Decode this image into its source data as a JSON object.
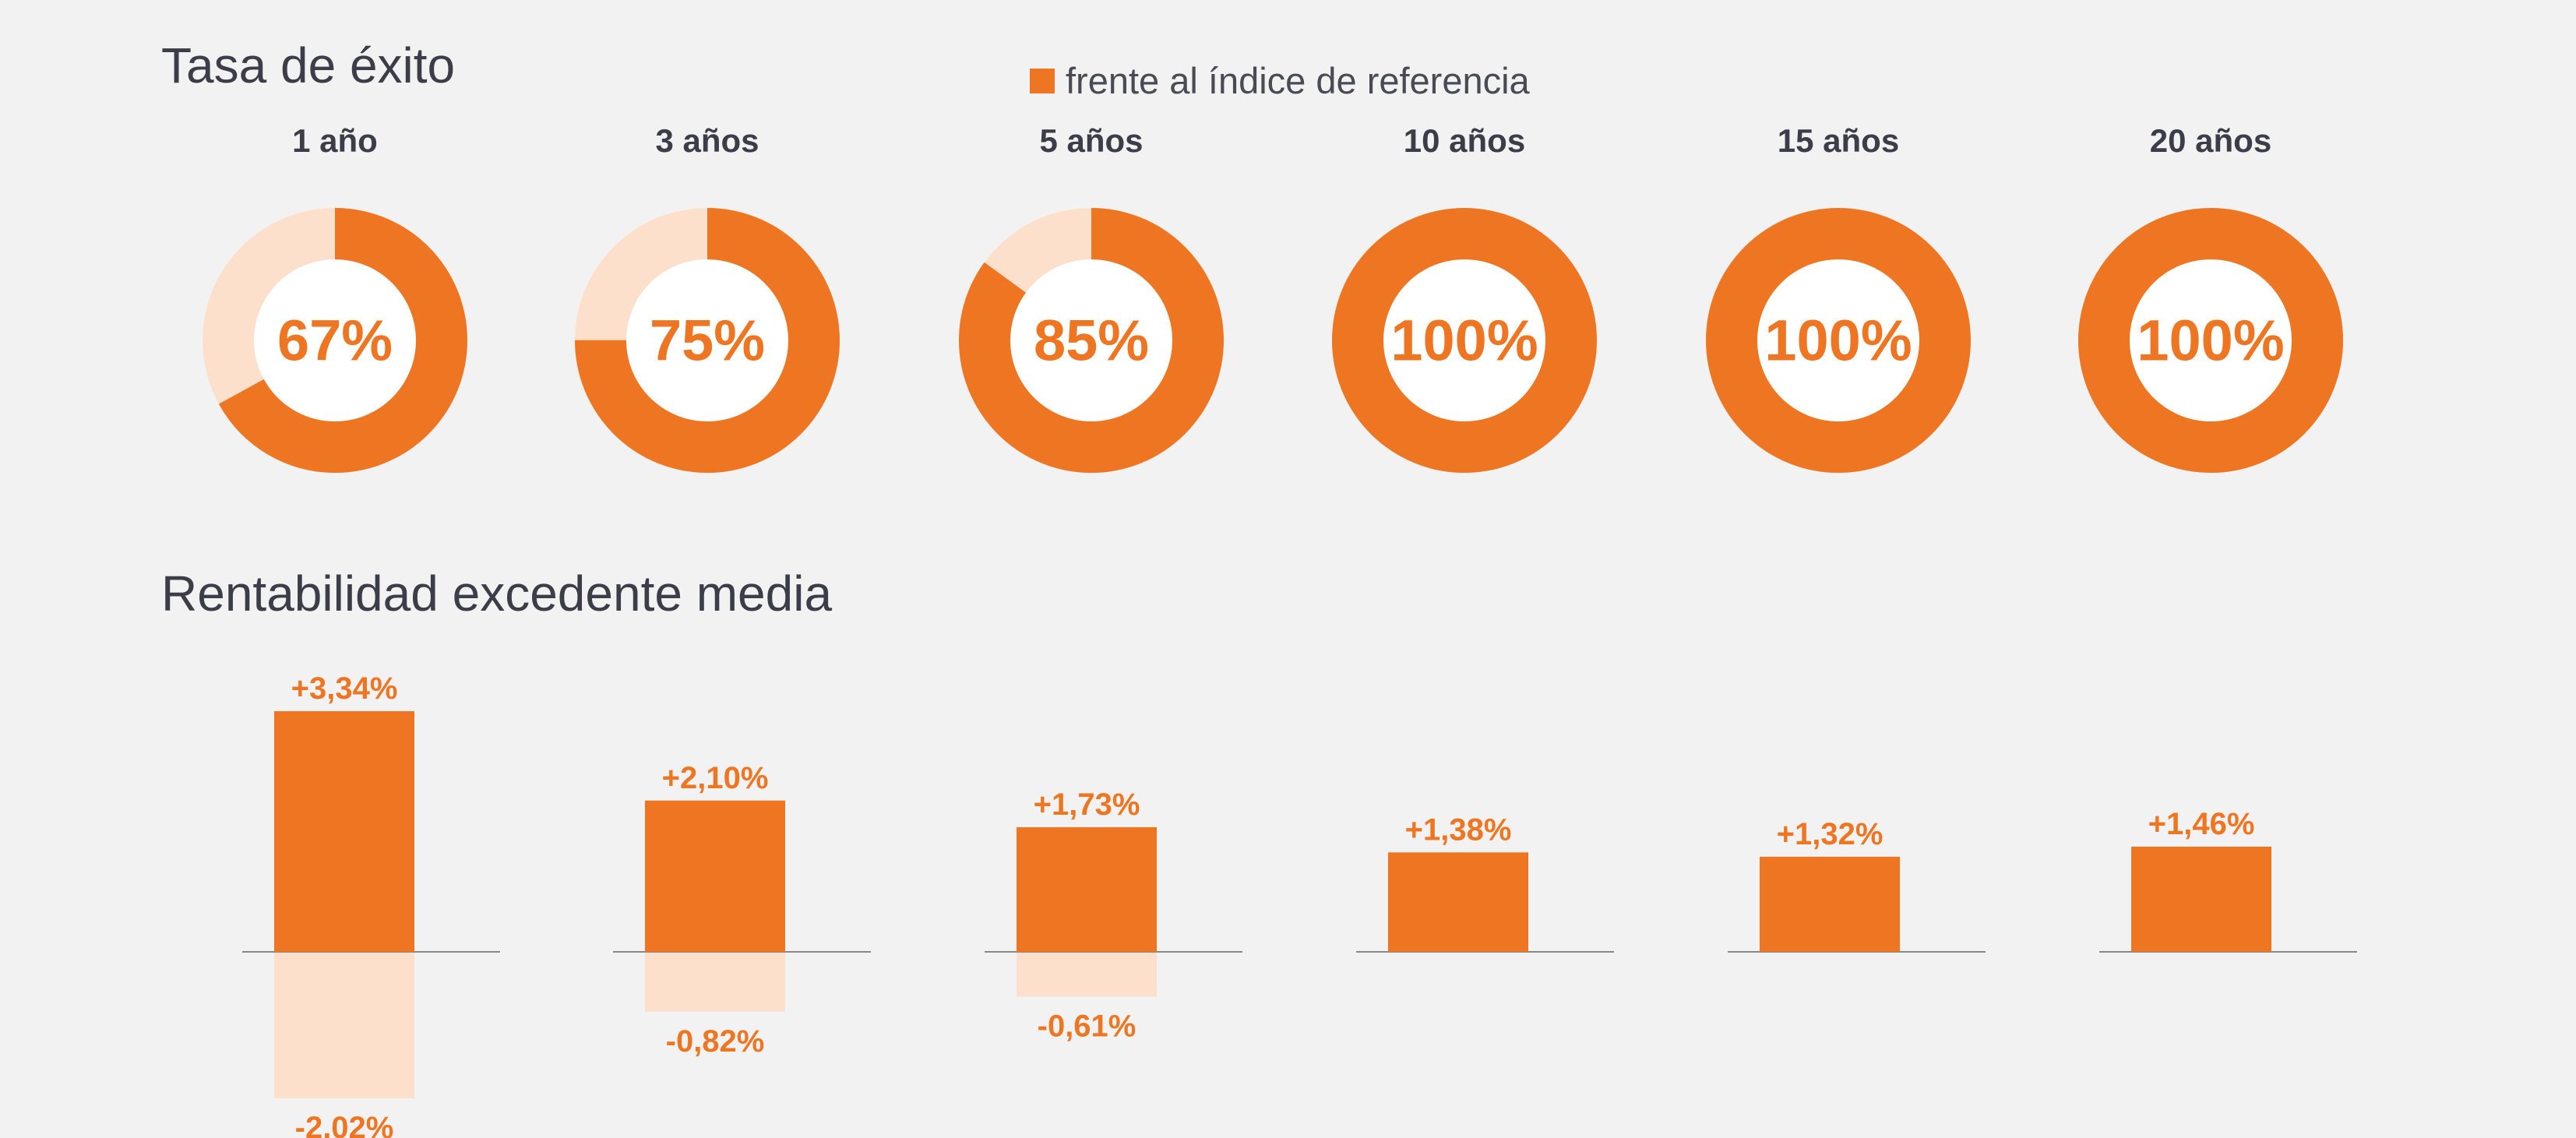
{
  "colors": {
    "accent": "#ee7623",
    "accent_light": "#fde0cc",
    "baseline": "#888888"
  },
  "legend": {
    "label": "frente al índice de referencia"
  },
  "chart_data": [
    {
      "type": "pie",
      "title": "Tasa de éxito",
      "categories": [
        "1 año",
        "3 años",
        "5 años",
        "10 años",
        "15 años",
        "20 años"
      ],
      "values": [
        67,
        75,
        85,
        100,
        100,
        100
      ],
      "value_labels": [
        "67%",
        "75%",
        "85%",
        "100%",
        "100%",
        "100%"
      ],
      "series": [
        {
          "name": "frente al índice de referencia",
          "values": [
            67,
            75,
            85,
            100,
            100,
            100
          ]
        }
      ],
      "legend": "top"
    },
    {
      "type": "bar",
      "title": "Rentabilidad excedente media",
      "categories": [
        "1 año",
        "3 años",
        "5 años",
        "10 años",
        "15 años",
        "20 años"
      ],
      "series": [
        {
          "values": [
            3.34,
            2.1,
            1.73,
            1.38,
            1.32,
            1.46
          ],
          "labels": [
            "+3,34%",
            "+2,10%",
            "+1,73%",
            "+1,38%",
            "+1,32%",
            "+1,46%"
          ]
        },
        {
          "values": [
            -2.02,
            -0.82,
            -0.61,
            null,
            null,
            null
          ],
          "labels": [
            "-2,02%",
            "-0,82%",
            "-0,61%",
            "",
            "",
            ""
          ]
        }
      ],
      "grid": false
    }
  ]
}
